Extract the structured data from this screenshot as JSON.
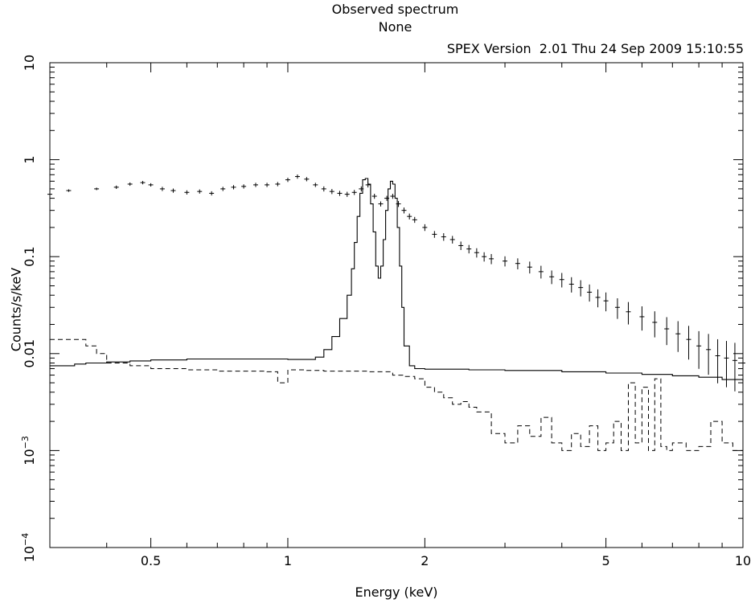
{
  "header": {
    "title": "Observed spectrum",
    "subtitle": "None",
    "version": "SPEX Version  2.01 Thu 24 Sep 2009 15:10:55"
  },
  "chart_data": {
    "type": "line",
    "xlabel": "Energy (keV)",
    "ylabel": "Counts/s/keV",
    "xscale": "log",
    "yscale": "log",
    "xlim": [
      0.3,
      10
    ],
    "ylim": [
      0.0001,
      10
    ],
    "xticks": [
      {
        "value": 0.5,
        "label": "0.5"
      },
      {
        "value": 1,
        "label": "1"
      },
      {
        "value": 2,
        "label": "2"
      },
      {
        "value": 5,
        "label": "5"
      },
      {
        "value": 10,
        "label": "10"
      }
    ],
    "yticks": [
      {
        "value": 0.0001,
        "label": "10",
        "exp": "−4"
      },
      {
        "value": 0.001,
        "label": "10",
        "exp": "−3"
      },
      {
        "value": 0.01,
        "label": "0.01"
      },
      {
        "value": 0.1,
        "label": "0.1"
      },
      {
        "value": 1,
        "label": "1"
      },
      {
        "value": 10,
        "label": "10"
      }
    ],
    "grid": false,
    "series": [
      {
        "role": "observed-data",
        "style": "crosses",
        "x": [
          0.3,
          0.33,
          0.38,
          0.42,
          0.45,
          0.48,
          0.5,
          0.53,
          0.56,
          0.6,
          0.64,
          0.68,
          0.72,
          0.76,
          0.8,
          0.85,
          0.9,
          0.95,
          1.0,
          1.05,
          1.1,
          1.15,
          1.2,
          1.25,
          1.3,
          1.35,
          1.4,
          1.45,
          1.5,
          1.55,
          1.6,
          1.65,
          1.7,
          1.75,
          1.8,
          1.85,
          1.9,
          2.0,
          2.1,
          2.2,
          2.3,
          2.4,
          2.5,
          2.6,
          2.7,
          2.8,
          3.0,
          3.2,
          3.4,
          3.6,
          3.8,
          4.0,
          4.2,
          4.4,
          4.6,
          4.8,
          5.0,
          5.3,
          5.6,
          6.0,
          6.4,
          6.8,
          7.2,
          7.6,
          8.0,
          8.4,
          8.8,
          9.2,
          9.6,
          10.0
        ],
        "values": [
          0.44,
          0.48,
          0.5,
          0.52,
          0.56,
          0.58,
          0.55,
          0.5,
          0.48,
          0.46,
          0.47,
          0.45,
          0.5,
          0.52,
          0.53,
          0.55,
          0.55,
          0.56,
          0.62,
          0.67,
          0.63,
          0.55,
          0.5,
          0.47,
          0.45,
          0.44,
          0.46,
          0.5,
          0.55,
          0.42,
          0.35,
          0.4,
          0.42,
          0.35,
          0.3,
          0.26,
          0.24,
          0.2,
          0.17,
          0.16,
          0.15,
          0.13,
          0.12,
          0.11,
          0.1,
          0.095,
          0.09,
          0.085,
          0.078,
          0.07,
          0.062,
          0.058,
          0.052,
          0.048,
          0.043,
          0.038,
          0.035,
          0.03,
          0.027,
          0.024,
          0.021,
          0.018,
          0.016,
          0.014,
          0.012,
          0.011,
          0.0095,
          0.009,
          0.0085,
          0.008
        ],
        "errors_rel": [
          0.03,
          0.03,
          0.03,
          0.04,
          0.04,
          0.04,
          0.04,
          0.05,
          0.05,
          0.05,
          0.05,
          0.05,
          0.05,
          0.05,
          0.05,
          0.05,
          0.05,
          0.05,
          0.05,
          0.05,
          0.05,
          0.05,
          0.06,
          0.06,
          0.06,
          0.06,
          0.06,
          0.06,
          0.06,
          0.06,
          0.06,
          0.06,
          0.06,
          0.07,
          0.07,
          0.07,
          0.07,
          0.08,
          0.08,
          0.09,
          0.09,
          0.1,
          0.1,
          0.11,
          0.11,
          0.12,
          0.12,
          0.13,
          0.14,
          0.15,
          0.16,
          0.17,
          0.18,
          0.19,
          0.2,
          0.21,
          0.22,
          0.24,
          0.26,
          0.28,
          0.3,
          0.32,
          0.35,
          0.38,
          0.42,
          0.45,
          0.48,
          0.5,
          0.52,
          0.55
        ]
      },
      {
        "role": "model",
        "style": "solid-step",
        "x": [
          0.3,
          0.34,
          0.36,
          0.4,
          0.45,
          0.5,
          0.6,
          0.7,
          0.8,
          0.9,
          1.0,
          1.1,
          1.15,
          1.2,
          1.25,
          1.3,
          1.35,
          1.38,
          1.4,
          1.42,
          1.44,
          1.46,
          1.48,
          1.5,
          1.52,
          1.54,
          1.56,
          1.58,
          1.6,
          1.62,
          1.64,
          1.66,
          1.68,
          1.7,
          1.72,
          1.74,
          1.76,
          1.78,
          1.8,
          1.85,
          1.9,
          2.0,
          2.5,
          3.0,
          4.0,
          5.0,
          6.0,
          7.0,
          8.0,
          9.0,
          10.0
        ],
        "values": [
          0.0075,
          0.0078,
          0.008,
          0.0082,
          0.0084,
          0.0086,
          0.0088,
          0.0088,
          0.0088,
          0.0088,
          0.0087,
          0.0087,
          0.0092,
          0.011,
          0.015,
          0.023,
          0.04,
          0.075,
          0.14,
          0.26,
          0.45,
          0.62,
          0.64,
          0.56,
          0.35,
          0.18,
          0.08,
          0.06,
          0.08,
          0.15,
          0.3,
          0.5,
          0.6,
          0.56,
          0.4,
          0.2,
          0.08,
          0.03,
          0.012,
          0.0075,
          0.007,
          0.0069,
          0.0068,
          0.0067,
          0.0065,
          0.0063,
          0.0061,
          0.0059,
          0.0057,
          0.0054,
          0.0052
        ]
      },
      {
        "role": "background",
        "style": "dashed-step",
        "x": [
          0.3,
          0.36,
          0.38,
          0.4,
          0.45,
          0.5,
          0.6,
          0.7,
          0.8,
          0.9,
          0.95,
          1.0,
          1.1,
          1.2,
          1.5,
          1.7,
          1.8,
          1.9,
          2.0,
          2.1,
          2.2,
          2.3,
          2.4,
          2.5,
          2.6,
          2.8,
          3.0,
          3.2,
          3.4,
          3.6,
          3.8,
          4.0,
          4.2,
          4.4,
          4.6,
          4.8,
          5.0,
          5.2,
          5.4,
          5.6,
          5.8,
          6.0,
          6.2,
          6.4,
          6.6,
          6.8,
          7.0,
          7.5,
          8.0,
          8.5,
          9.0,
          9.5,
          10.0
        ],
        "values": [
          0.014,
          0.012,
          0.01,
          0.008,
          0.0075,
          0.007,
          0.0068,
          0.0066,
          0.0066,
          0.0065,
          0.005,
          0.0068,
          0.0067,
          0.0066,
          0.0065,
          0.006,
          0.0058,
          0.0055,
          0.0045,
          0.004,
          0.0035,
          0.003,
          0.0032,
          0.0028,
          0.0025,
          0.0015,
          0.0012,
          0.0018,
          0.0014,
          0.0022,
          0.0012,
          0.001,
          0.0015,
          0.0011,
          0.0018,
          0.001,
          0.0012,
          0.002,
          0.001,
          0.005,
          0.0012,
          0.0045,
          0.001,
          0.0055,
          0.0011,
          0.001,
          0.0012,
          0.001,
          0.0011,
          0.002,
          0.0012,
          0.001,
          0.0009
        ]
      }
    ]
  }
}
